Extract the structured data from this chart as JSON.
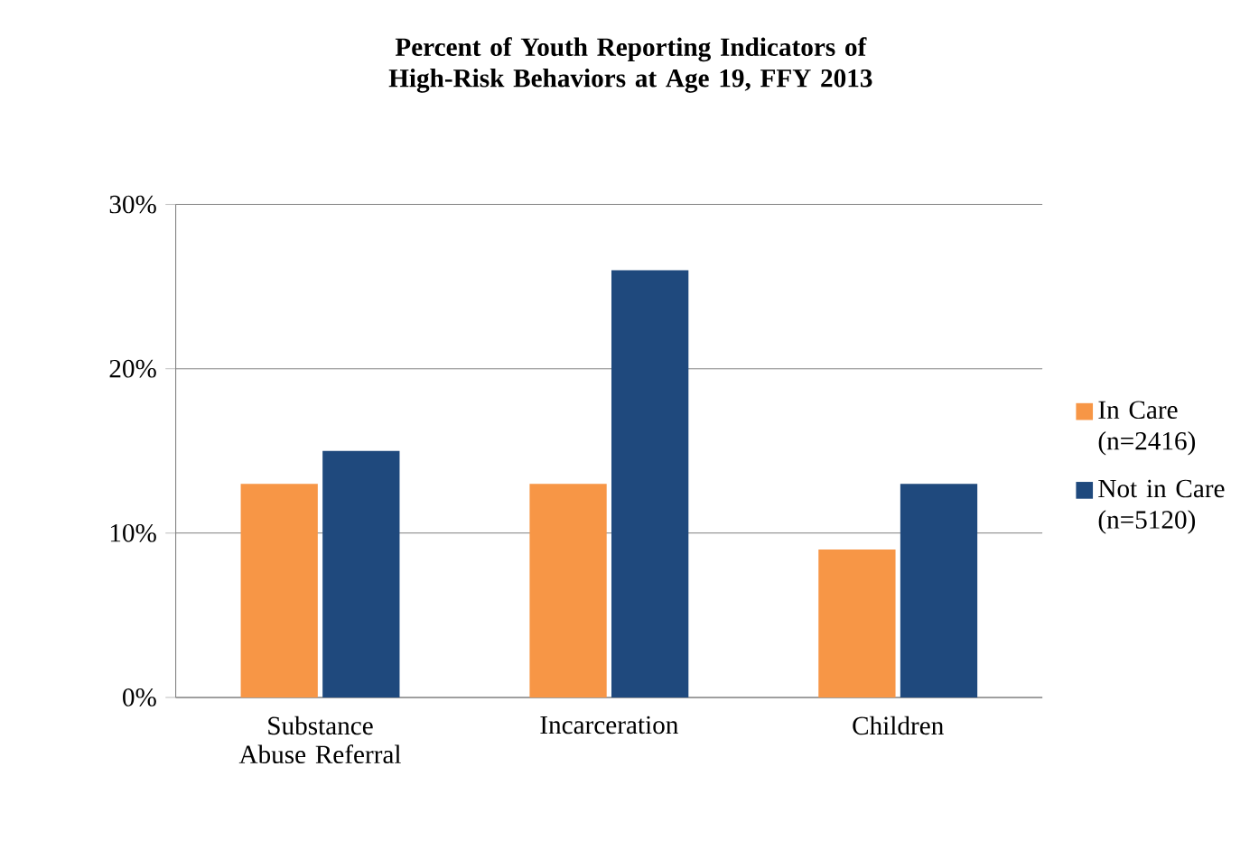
{
  "chart_data": {
    "type": "bar",
    "title": "Percent of Youth Reporting Indicators of High-Risk Behaviors at Age 19, FFY 2013",
    "categories": [
      "Substance Abuse Referral",
      "Incarceration",
      "Children"
    ],
    "series": [
      {
        "name": "In Care (n=2416)",
        "color": "#f79646",
        "values": [
          13,
          13,
          9
        ]
      },
      {
        "name": "Not in Care (n=5120)",
        "color": "#1f497d",
        "values": [
          15,
          26,
          13
        ]
      }
    ],
    "ylim": [
      0,
      30
    ],
    "yticks": [
      {
        "value": 0,
        "label": "0%"
      },
      {
        "value": 10,
        "label": "10%"
      },
      {
        "value": 20,
        "label": "20%"
      },
      {
        "value": 30,
        "label": "30%"
      }
    ],
    "grid": "y",
    "legend": "right"
  }
}
